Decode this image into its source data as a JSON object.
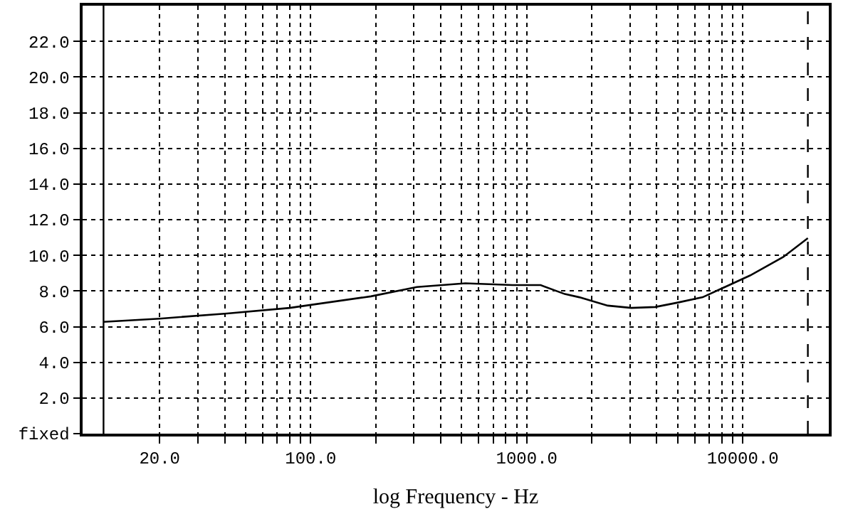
{
  "chart_data": {
    "type": "line",
    "xlabel": "log Frequency - Hz",
    "log": "x",
    "x": [
      11,
      20,
      41,
      80,
      190,
      310,
      520,
      860,
      1160,
      1500,
      1750,
      2370,
      3050,
      3930,
      5000,
      6520,
      10800,
      15400,
      20000
    ],
    "series": [
      {
        "color": "#000000",
        "values": [
          6.27,
          6.45,
          6.74,
          7.05,
          7.7,
          8.22,
          8.43,
          8.33,
          8.33,
          7.83,
          7.65,
          7.18,
          7.05,
          7.1,
          7.35,
          7.65,
          8.87,
          9.91,
          10.96
        ]
      }
    ],
    "xlim": [
      8.8,
      25000
    ],
    "xticks": [
      {
        "value": 20,
        "label": "20.0"
      },
      {
        "value": 30,
        "label": null
      },
      {
        "value": 40,
        "label": null
      },
      {
        "value": 50,
        "label": null
      },
      {
        "value": 60,
        "label": null
      },
      {
        "value": 70,
        "label": null
      },
      {
        "value": 80,
        "label": null
      },
      {
        "value": 90,
        "label": null
      },
      {
        "value": 100,
        "label": "100.0"
      },
      {
        "value": 200,
        "label": null
      },
      {
        "value": 300,
        "label": null
      },
      {
        "value": 400,
        "label": null
      },
      {
        "value": 500,
        "label": null
      },
      {
        "value": 600,
        "label": null
      },
      {
        "value": 700,
        "label": null
      },
      {
        "value": 800,
        "label": null
      },
      {
        "value": 900,
        "label": null
      },
      {
        "value": 1000,
        "label": "1000.0"
      },
      {
        "value": 2000,
        "label": null
      },
      {
        "value": 3000,
        "label": null
      },
      {
        "value": 4000,
        "label": null
      },
      {
        "value": 5000,
        "label": null
      },
      {
        "value": 6000,
        "label": null
      },
      {
        "value": 7000,
        "label": null
      },
      {
        "value": 8000,
        "label": null
      },
      {
        "value": 9000,
        "label": null
      },
      {
        "value": 10000,
        "label": "10000.0"
      }
    ],
    "ylim": [
      0,
      24
    ],
    "yticks": [
      {
        "value": 0,
        "label": "fixed"
      },
      {
        "value": 2,
        "label": "2.0"
      },
      {
        "value": 4,
        "label": "4.0"
      },
      {
        "value": 6,
        "label": "6.0"
      },
      {
        "value": 8,
        "label": "8.0"
      },
      {
        "value": 10,
        "label": "10.0"
      },
      {
        "value": 12,
        "label": "12.0"
      },
      {
        "value": 14,
        "label": "14.0"
      },
      {
        "value": 16,
        "label": "16.0"
      },
      {
        "value": 18,
        "label": "18.0"
      },
      {
        "value": 20,
        "label": "20.0"
      },
      {
        "value": 22,
        "label": "22.0"
      }
    ],
    "ref_lines": [
      {
        "axis": "x",
        "value": 11,
        "color": "#000000",
        "line_style": "solid"
      },
      {
        "axis": "x",
        "value": 20000,
        "color": "#000000",
        "line_style": "dashed"
      }
    ],
    "grid": true,
    "marker": "none",
    "line_style": "solid"
  }
}
